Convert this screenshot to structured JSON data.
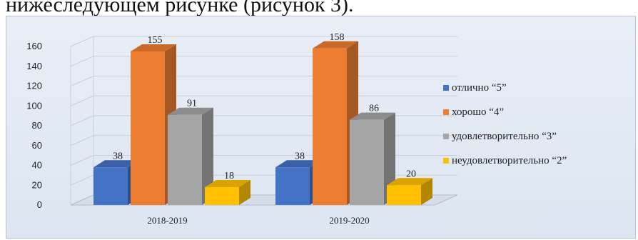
{
  "page_text": "нижеследующем рисунке (рисунок 3).",
  "colors": {
    "panel_top": "#e9eef6",
    "grid": "#c9cfd8"
  },
  "chart_data": {
    "type": "bar",
    "categories": [
      "2018-2019",
      "2019-2020"
    ],
    "series": [
      {
        "name": "отлично “5”",
        "values": [
          38,
          38
        ],
        "color": "#4472c4"
      },
      {
        "name": "хорошо “4”",
        "values": [
          155,
          158
        ],
        "color": "#ed7d31"
      },
      {
        "name": "удовлетворительно “3”",
        "values": [
          91,
          86
        ],
        "color": "#a5a5a5"
      },
      {
        "name": "неудовлетворительно “2”",
        "values": [
          18,
          20
        ],
        "color": "#ffc000"
      }
    ],
    "yticks": [
      0,
      20,
      40,
      60,
      80,
      100,
      120,
      140,
      160
    ],
    "ylim": [
      0,
      160
    ],
    "grid": true,
    "style": "3d-clustered-column",
    "legend_position": "right"
  }
}
